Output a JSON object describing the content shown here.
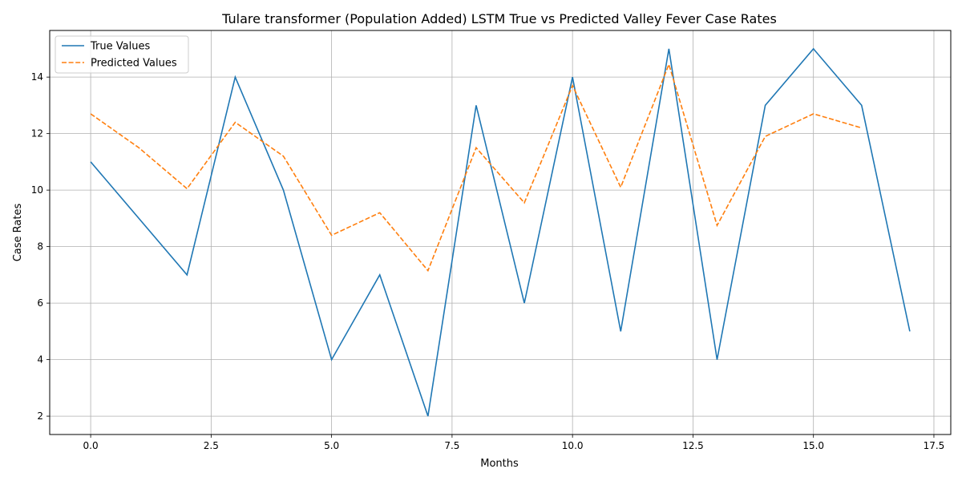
{
  "chart_data": {
    "type": "line",
    "title": "Tulare transformer (Population Added) LSTM True vs Predicted Valley Fever Case Rates",
    "xlabel": "Months",
    "ylabel": "Case Rates",
    "xlim": [
      -0.85,
      17.85
    ],
    "ylim": [
      1.35,
      15.65
    ],
    "xticks": [
      0.0,
      2.5,
      5.0,
      7.5,
      10.0,
      12.5,
      15.0,
      17.5
    ],
    "xtick_labels": [
      "0.0",
      "2.5",
      "5.0",
      "7.5",
      "10.0",
      "12.5",
      "15.0",
      "17.5"
    ],
    "yticks": [
      2,
      4,
      6,
      8,
      10,
      12,
      14
    ],
    "ytick_labels": [
      "2",
      "4",
      "6",
      "8",
      "10",
      "12",
      "14"
    ],
    "grid": true,
    "legend_position": "top-left",
    "series": [
      {
        "name": "True Values",
        "color": "#1f77b4",
        "style": "solid",
        "x": [
          0,
          1,
          2,
          3,
          4,
          5,
          6,
          7,
          8,
          9,
          10,
          11,
          12,
          13,
          14,
          15,
          16,
          17
        ],
        "values": [
          11,
          9,
          7,
          14,
          10,
          4,
          7,
          2,
          13,
          6,
          14,
          5,
          15,
          4,
          13,
          15,
          13,
          5
        ]
      },
      {
        "name": "Predicted Values",
        "color": "#ff7f0e",
        "style": "dashed",
        "x": [
          0,
          1,
          2,
          3,
          4,
          5,
          6,
          7,
          8,
          9,
          10,
          11,
          12,
          13,
          14,
          15,
          16
        ],
        "values": [
          12.7,
          11.5,
          10.05,
          12.4,
          11.2,
          8.4,
          9.2,
          7.15,
          11.5,
          9.55,
          13.7,
          10.1,
          14.45,
          8.75,
          11.9,
          12.7,
          12.2
        ]
      }
    ]
  }
}
